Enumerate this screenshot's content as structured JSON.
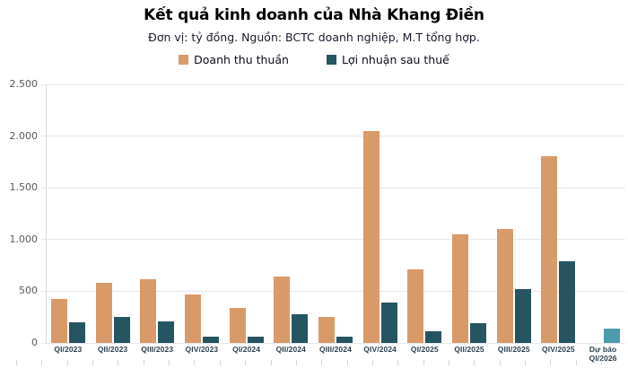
{
  "header": {
    "title": "Kết quả kinh doanh của Nhà Khang Điền",
    "subtitle": "Đơn vị: tỷ đồng. Nguồn: BCTC doanh nghiệp, M.T tổng hợp."
  },
  "legend": {
    "items": [
      {
        "label": "Doanh thu thuần",
        "color": "#D99A6A"
      },
      {
        "label": "Lợi nhuận sau thuế",
        "color": "#265562"
      }
    ]
  },
  "chart_data": {
    "type": "bar",
    "title": "Kết quả kinh doanh của Nhà Khang Điền",
    "subtitle": "Đơn vị: tỷ đồng. Nguồn: BCTC doanh nghiệp, M.T tổng hợp.",
    "unit": "tỷ đồng",
    "categories": [
      "QI/2023",
      "QII/2023",
      "QIII/2023",
      "QIV/2023",
      "QI/2024",
      "QII/2024",
      "QIII/2024",
      "QIV/2024",
      "QI/2025",
      "QII/2025",
      "QIII/2025",
      "QIV/2025",
      "Dự báo\nQI/2026"
    ],
    "series": [
      {
        "name": "Doanh thu thuần",
        "color": "#D99A6A",
        "values": [
          425,
          585,
          615,
          465,
          335,
          645,
          250,
          2050,
          710,
          1050,
          1100,
          1810,
          null
        ]
      },
      {
        "name": "Lợi nhuận sau thuế",
        "color": "#265562",
        "values": [
          200,
          255,
          205,
          60,
          60,
          275,
          65,
          390,
          115,
          190,
          520,
          790,
          140
        ]
      }
    ],
    "forecast": {
      "category_index": 12,
      "series_index": 1,
      "color": "#4D9CAD",
      "label": "Dự báo QI/2026"
    },
    "ylim": [
      0,
      2500
    ],
    "yticks": [
      {
        "value": 0,
        "label": "0"
      },
      {
        "value": 500,
        "label": "500"
      },
      {
        "value": 1000,
        "label": "1.000"
      },
      {
        "value": 1500,
        "label": "1.500"
      },
      {
        "value": 2000,
        "label": "2.000"
      },
      {
        "value": 2500,
        "label": "2.500"
      }
    ],
    "grid": true,
    "legend_position": "top"
  }
}
